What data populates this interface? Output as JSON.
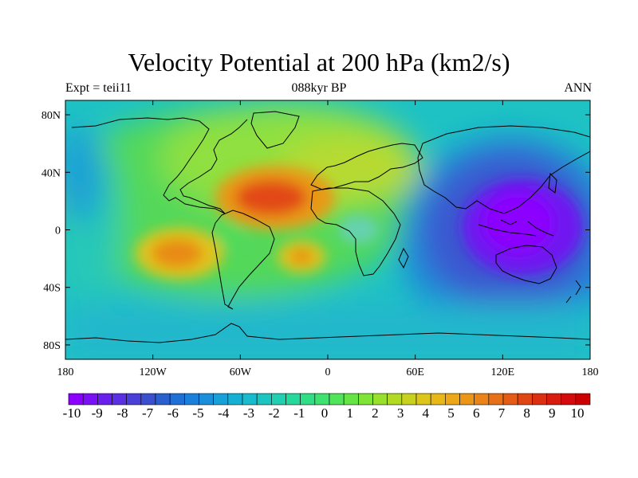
{
  "title": "Velocity Potential at 200 hPa (km2/s)",
  "left_label": "Expt = teii11",
  "center_label": "088kyr BP",
  "right_label": "ANN",
  "lat_ticks": [
    {
      "label": "80N",
      "lat": 80
    },
    {
      "label": "40N",
      "lat": 40
    },
    {
      "label": "0",
      "lat": 0
    },
    {
      "label": "40S",
      "lat": -40
    },
    {
      "label": "80S",
      "lat": -80
    }
  ],
  "lon_ticks": [
    {
      "label": "180",
      "lon": -180
    },
    {
      "label": "120W",
      "lon": -120
    },
    {
      "label": "60W",
      "lon": -60
    },
    {
      "label": "0",
      "lon": 0
    },
    {
      "label": "60E",
      "lon": 60
    },
    {
      "label": "120E",
      "lon": 120
    },
    {
      "label": "180",
      "lon": 180
    }
  ],
  "colorbar": {
    "labels": [
      "-10",
      "-9",
      "-8",
      "-7",
      "-6",
      "-5",
      "-4",
      "-3",
      "-2",
      "-1",
      "0",
      "1",
      "2",
      "3",
      "4",
      "5",
      "6",
      "7",
      "8",
      "9",
      "10"
    ],
    "colors": [
      "#8b00ff",
      "#7a10f5",
      "#6a20ec",
      "#5a30e2",
      "#4a40d8",
      "#3a50ce",
      "#2a5fd0",
      "#1e6fd6",
      "#1a80dc",
      "#1a90dc",
      "#18a0d8",
      "#16b0d4",
      "#18bccc",
      "#1cc6c0",
      "#20d0b0",
      "#26d89c",
      "#30de86",
      "#3ee270",
      "#50e45a",
      "#66e446",
      "#80e436",
      "#99e02c",
      "#b2da24",
      "#c8d21e",
      "#dcc61a",
      "#e8b818",
      "#eca818",
      "#ec9618",
      "#ea8418",
      "#e87018",
      "#e45c16",
      "#e04614",
      "#dc3012",
      "#d81c10",
      "#d40a0e",
      "#cc0000"
    ]
  },
  "chart_data": {
    "type": "heatmap",
    "variable": "Velocity Potential at 200 hPa",
    "units": "km2/s",
    "projection": "cylindrical equidistant",
    "lon_range": [
      -180,
      180
    ],
    "lat_range": [
      -90,
      90
    ],
    "contour_levels": [
      -10,
      -9,
      -8,
      -7,
      -6,
      -5,
      -4,
      -3,
      -2,
      -1,
      0,
      1,
      2,
      3,
      4,
      5,
      6,
      7,
      8,
      9,
      10
    ],
    "features": [
      {
        "lon": -45,
        "lat": 20,
        "value": 9.5
      },
      {
        "lon": -105,
        "lat": -18,
        "value": 8
      },
      {
        "lon": -22,
        "lat": -22,
        "value": 7.5
      },
      {
        "lon": -68,
        "lat": -10,
        "value": 3
      },
      {
        "lon": 130,
        "lat": 0,
        "value": -10
      },
      {
        "lon": 135,
        "lat": -25,
        "value": -8
      },
      {
        "lon": 120,
        "lat": 35,
        "value": -7
      }
    ]
  }
}
